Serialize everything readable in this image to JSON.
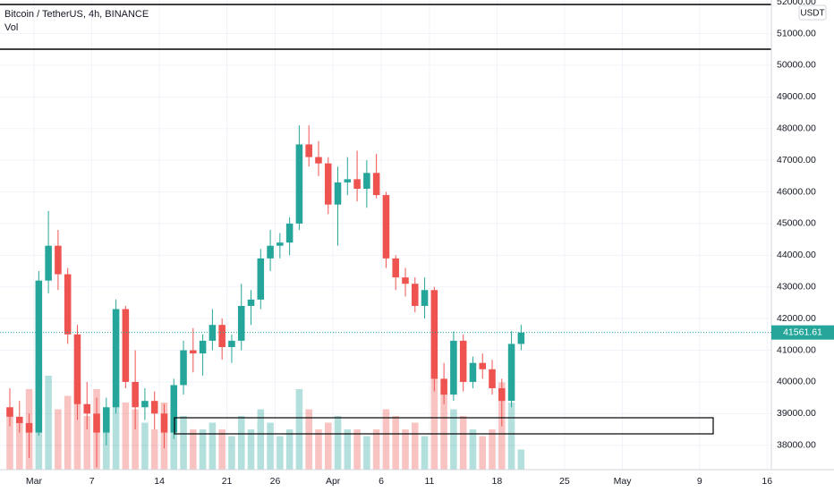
{
  "chart_data": {
    "type": "candlestick",
    "title": "Bitcoin / TetherUS, 4h, BINANCE",
    "volume_label": "Vol",
    "currency": "USDT",
    "up_color": "#26a69a",
    "down_color": "#ef5350",
    "grid": true,
    "x": [
      -2,
      -1,
      0,
      1,
      2,
      3,
      4,
      5,
      6,
      7,
      8,
      9,
      10,
      11,
      12,
      13,
      14,
      15,
      16,
      17,
      18,
      19,
      20,
      21,
      22,
      23,
      24,
      25,
      26,
      27,
      28,
      29,
      30,
      31,
      32,
      33,
      34,
      35,
      36,
      37,
      38,
      39,
      40,
      41,
      42,
      43,
      44,
      45,
      46,
      47,
      48,
      49,
      50,
      51
    ],
    "open": [
      39200,
      38900,
      38700,
      38400,
      43200,
      44300,
      43400,
      41500,
      39300,
      39000,
      38400,
      39200,
      42300,
      40000,
      39200,
      39400,
      39000,
      38400,
      39900,
      41000,
      40900,
      41300,
      41800,
      41100,
      41300,
      42400,
      42600,
      43900,
      44300,
      44400,
      45000,
      47500,
      47100,
      46900,
      45600,
      46300,
      46400,
      46100,
      46600,
      45900,
      43900,
      43300,
      43100,
      42400,
      42900,
      40100,
      39600,
      41300,
      40000,
      40600,
      40400,
      39800,
      39400,
      41200
    ],
    "high": [
      39800,
      39400,
      39000,
      43500,
      45400,
      44800,
      43600,
      41800,
      40000,
      39500,
      39500,
      42600,
      42400,
      41000,
      39800,
      39700,
      39300,
      40100,
      41300,
      41700,
      41500,
      42300,
      42000,
      41500,
      43100,
      42900,
      44200,
      44800,
      44700,
      45200,
      48100,
      48100,
      47600,
      47100,
      46800,
      47100,
      47300,
      47000,
      47200,
      46000,
      44000,
      43600,
      43300,
      43300,
      43000,
      40600,
      41600,
      41500,
      40800,
      40900,
      40700,
      40100,
      41600,
      41800
    ],
    "low": [
      38600,
      38400,
      37600,
      38300,
      42800,
      42900,
      41200,
      38800,
      38500,
      37300,
      38000,
      39000,
      39800,
      38500,
      38800,
      38500,
      37900,
      38200,
      39600,
      40300,
      40200,
      41000,
      40700,
      40600,
      41000,
      41800,
      42300,
      43500,
      43900,
      44000,
      44800,
      46800,
      46500,
      45300,
      44300,
      45900,
      45700,
      45500,
      45800,
      43600,
      42900,
      42700,
      42200,
      42000,
      39700,
      39300,
      39400,
      39700,
      39800,
      40100,
      39600,
      38600,
      39200,
      41000
    ],
    "close": [
      38900,
      38700,
      38400,
      43200,
      44300,
      43400,
      41500,
      39300,
      39000,
      38400,
      39200,
      42300,
      40000,
      39200,
      39400,
      39000,
      38400,
      39900,
      41000,
      40900,
      41300,
      41800,
      41100,
      41300,
      42400,
      42600,
      43900,
      44300,
      44400,
      45000,
      47500,
      47100,
      46900,
      45600,
      46300,
      46400,
      46100,
      46600,
      45900,
      43900,
      43300,
      43100,
      42400,
      42900,
      40100,
      39600,
      41300,
      40000,
      40600,
      40400,
      39800,
      39400,
      41200,
      41561.61
    ],
    "volume": [
      9000,
      7000,
      12000,
      16000,
      14000,
      9000,
      11000,
      13000,
      8000,
      12000,
      8000,
      11000,
      10000,
      9000,
      7000,
      6000,
      10000,
      9000,
      8000,
      6000,
      6000,
      7000,
      6000,
      5000,
      8000,
      6000,
      9000,
      7000,
      5000,
      6000,
      12000,
      9000,
      6000,
      7000,
      8000,
      6000,
      6000,
      5000,
      6000,
      9000,
      8000,
      6000,
      7000,
      5000,
      14000,
      12000,
      9000,
      8000,
      6000,
      5000,
      6000,
      13000,
      10000,
      3000
    ],
    "last_price": {
      "value": 41561.61,
      "label": "41561.61"
    },
    "xlim": [
      -2.52,
      77.44
    ],
    "ylim": [
      37230,
      52060
    ],
    "xticks": [
      {
        "value": 1,
        "label": "Mar"
      },
      7,
      14,
      21,
      26,
      {
        "value": 32,
        "label": "Apr"
      },
      {
        "value": 37,
        "label": "6"
      },
      {
        "value": 42,
        "label": "11"
      },
      {
        "value": 49,
        "label": "18"
      },
      {
        "value": 56,
        "label": "25"
      },
      {
        "value": 62,
        "label": "May"
      },
      {
        "value": 70,
        "label": "9"
      },
      {
        "value": 77,
        "label": "16"
      }
    ],
    "yticks": [
      {
        "value": 38000,
        "label": "38000.00"
      },
      {
        "value": 39000,
        "label": "39000.00"
      },
      {
        "value": 40000,
        "label": "40000.00"
      },
      {
        "value": 41000,
        "label": "41000.00"
      },
      {
        "value": 42000,
        "label": "42000.00"
      },
      {
        "value": 43000,
        "label": "43000.00"
      },
      {
        "value": 44000,
        "label": "44000.00"
      },
      {
        "value": 45000,
        "label": "45000.00"
      },
      {
        "value": 46000,
        "label": "46000.00"
      },
      {
        "value": 47000,
        "label": "47000.00"
      },
      {
        "value": 48000,
        "label": "48000.00"
      },
      {
        "value": 49000,
        "label": "49000.00"
      },
      {
        "value": 50000,
        "label": "50000.00"
      },
      {
        "value": 51000,
        "label": "51000.00"
      },
      {
        "value": 52000,
        "label": "52000.00"
      }
    ]
  }
}
